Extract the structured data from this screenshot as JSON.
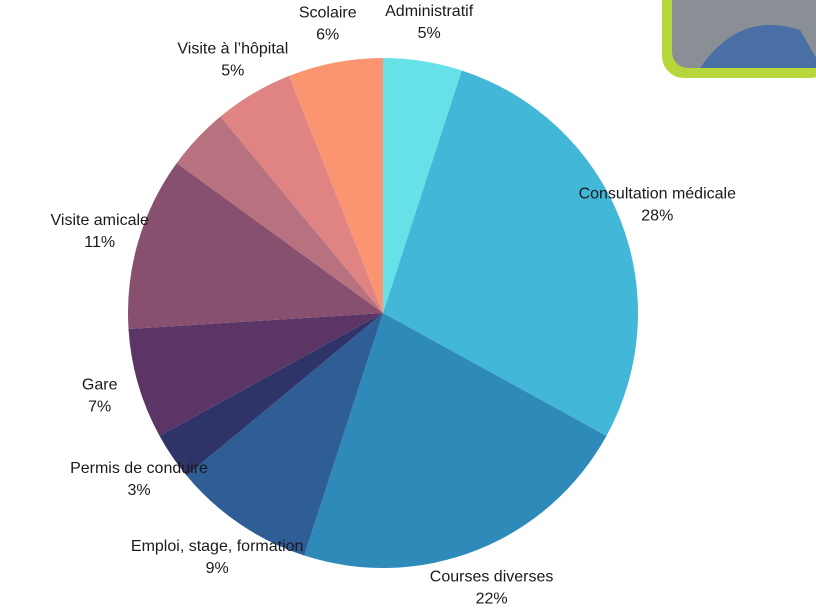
{
  "chart_data": {
    "type": "pie",
    "categories": [
      "Administratif",
      "Consultation médicale",
      "Courses diverses",
      "Emploi, stage, formation",
      "Permis de conduire",
      "Gare",
      "Visite amicale",
      null,
      "Visite à l’hôpital",
      "Scolaire"
    ],
    "values": [
      5,
      28,
      22,
      9,
      3,
      7,
      11,
      4,
      5,
      6
    ],
    "value_labels": [
      "5%",
      "28%",
      "22%",
      "9%",
      "3%",
      "7%",
      "11%",
      null,
      "5%",
      "6%"
    ],
    "colors": [
      "#66e1e7",
      "#43b7d7",
      "#2e8bb9",
      "#2f5d95",
      "#2e3368",
      "#5b3566",
      "#87506f",
      "#b8717f",
      "#e08383",
      "#fb9471"
    ]
  }
}
